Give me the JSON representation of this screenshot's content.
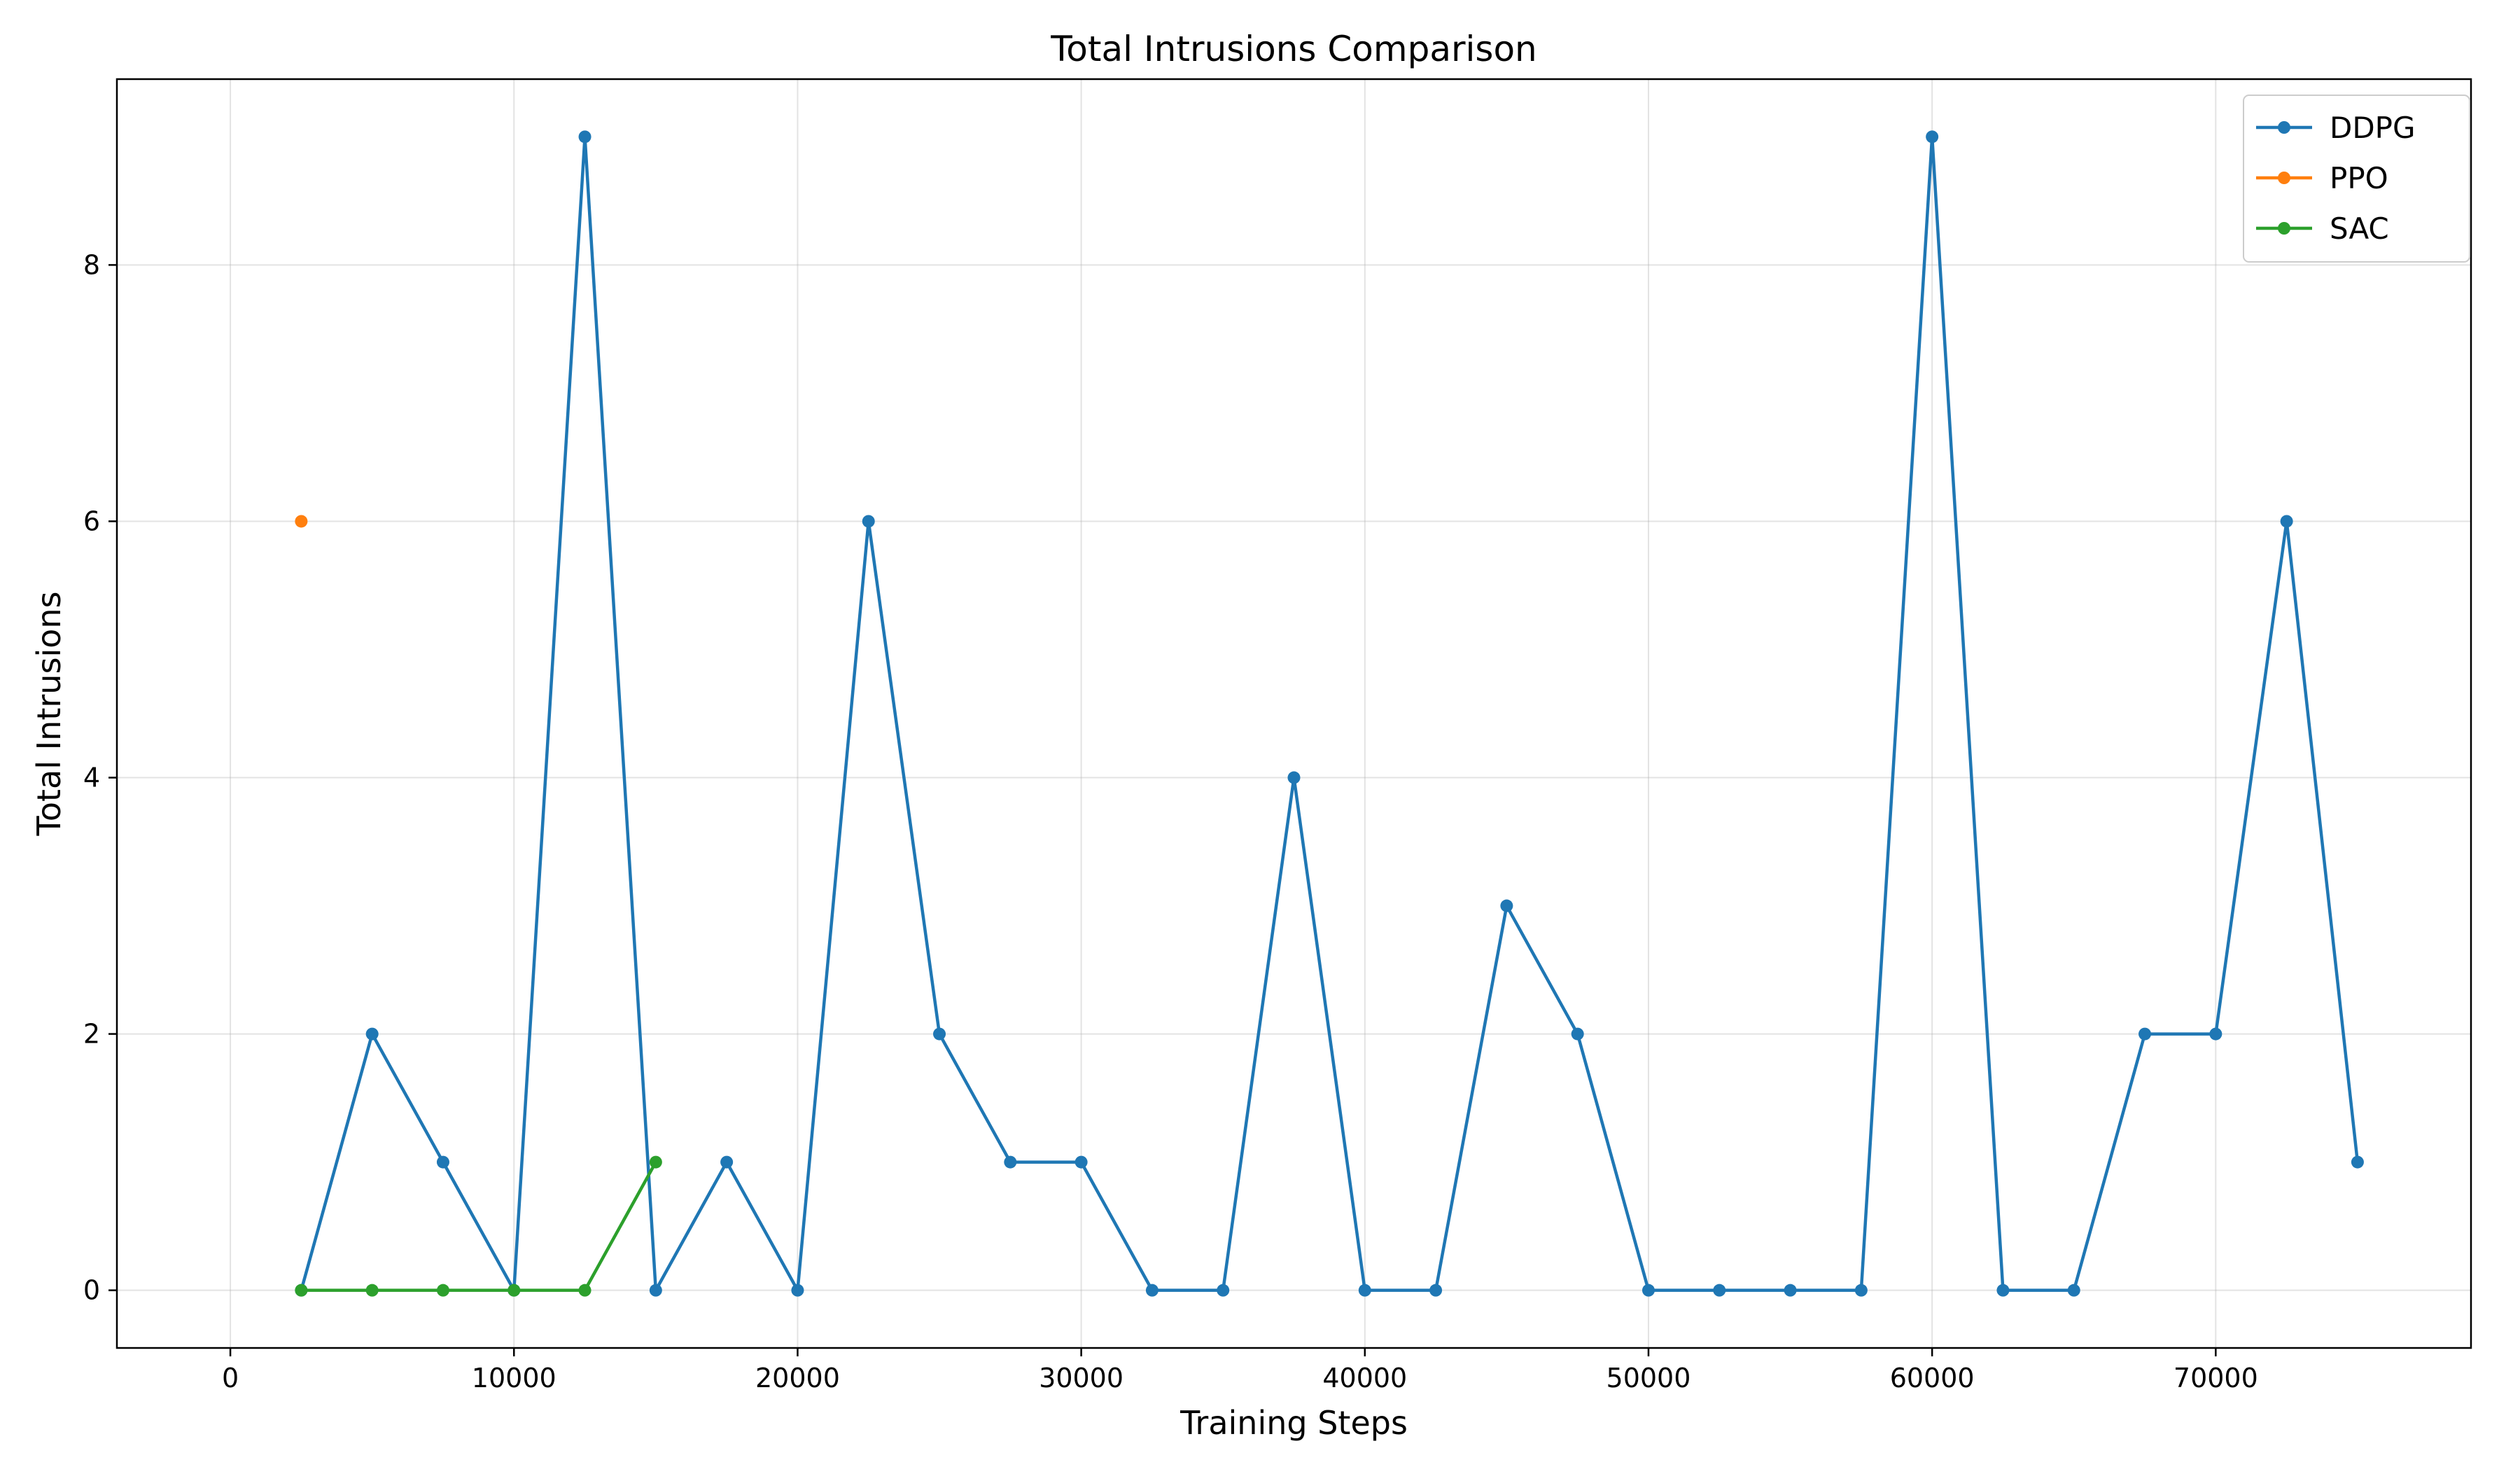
{
  "chart_data": {
    "type": "line",
    "title": "Total Intrusions Comparison",
    "xlabel": "Training Steps",
    "ylabel": "Total Intrusions",
    "xlim": [
      -4000,
      79000
    ],
    "ylim": [
      -0.45,
      9.45
    ],
    "xticks": [
      0,
      10000,
      20000,
      30000,
      40000,
      50000,
      60000,
      70000
    ],
    "yticks": [
      0,
      2,
      4,
      6,
      8
    ],
    "grid": true,
    "legend_position": "top-right",
    "series": [
      {
        "name": "DDPG",
        "color": "#1f77b4",
        "x": [
          2500,
          5000,
          7500,
          10000,
          12500,
          15000,
          17500,
          20000,
          22500,
          25000,
          27500,
          30000,
          32500,
          35000,
          37500,
          40000,
          42500,
          45000,
          47500,
          50000,
          52500,
          55000,
          57500,
          60000,
          62500,
          65000,
          67500,
          70000,
          72500,
          75000
        ],
        "y": [
          0,
          2,
          1,
          0,
          9,
          0,
          1,
          0,
          6,
          2,
          1,
          1,
          0,
          0,
          4,
          0,
          0,
          3,
          2,
          0,
          0,
          0,
          0,
          9,
          0,
          0,
          2,
          2,
          6,
          1
        ]
      },
      {
        "name": "PPO",
        "color": "#ff7f0e",
        "x": [
          2500
        ],
        "y": [
          6
        ]
      },
      {
        "name": "SAC",
        "color": "#2ca02c",
        "x": [
          2500,
          5000,
          7500,
          10000,
          12500,
          15000
        ],
        "y": [
          0,
          0,
          0,
          0,
          0,
          1
        ]
      }
    ]
  }
}
